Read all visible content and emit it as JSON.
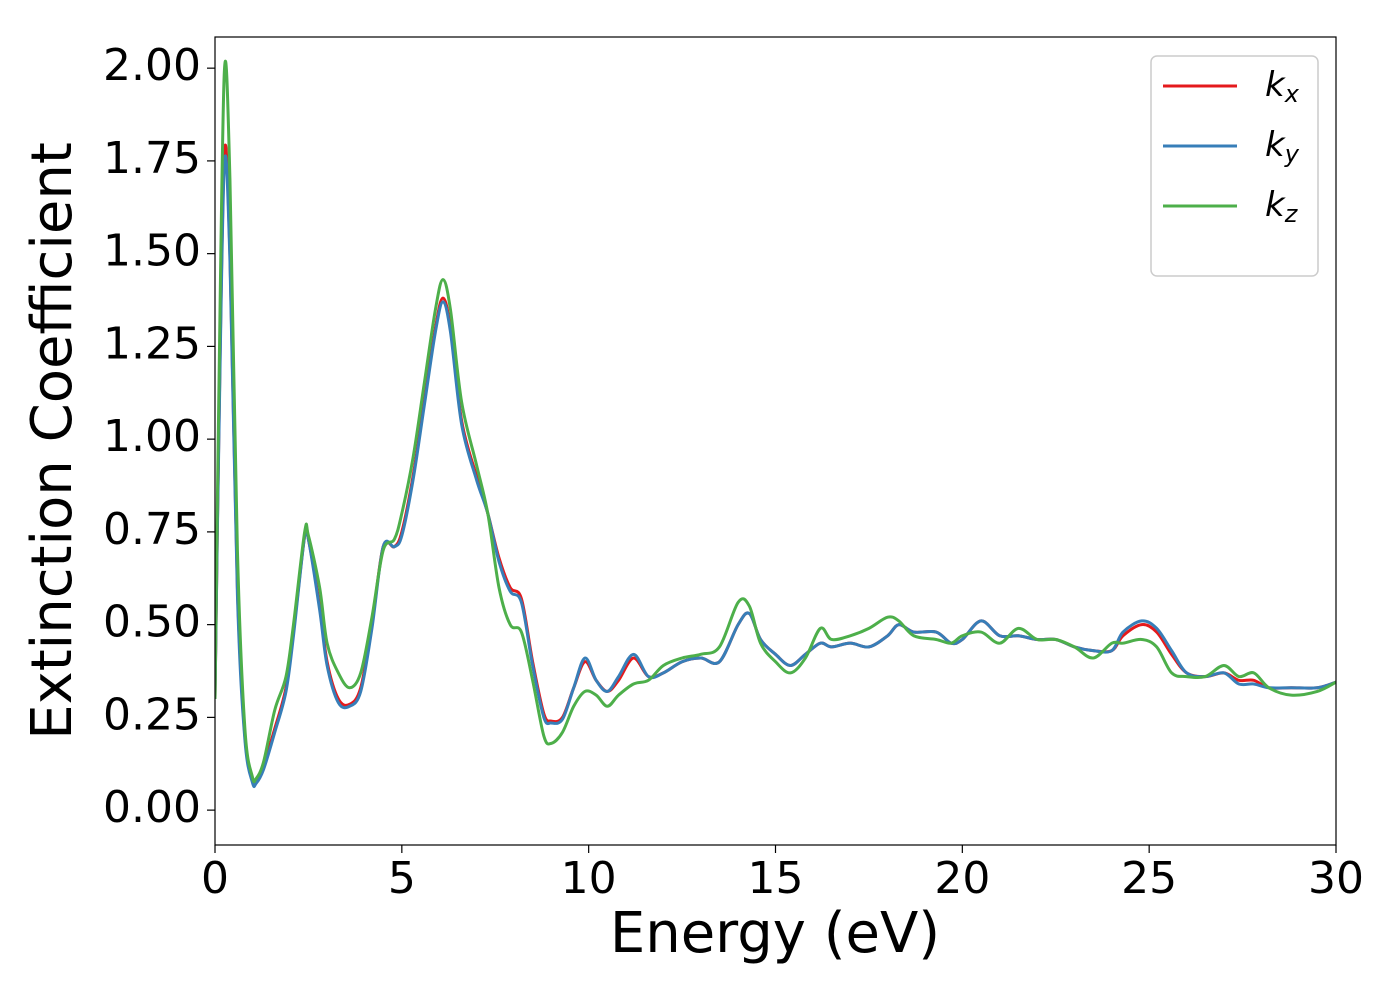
{
  "chart_data": {
    "type": "line",
    "xlabel": "Energy (eV)",
    "ylabel": "Extinction Coefficient",
    "xlim": [
      0,
      30
    ],
    "xticks": [
      0,
      5,
      10,
      15,
      20,
      25,
      30
    ],
    "ylim": [
      -0.094,
      2.084
    ],
    "yticks": [
      {
        "value": 0,
        "label": "0.00"
      },
      {
        "value": 0.25,
        "label": "0.25"
      },
      {
        "value": 0.5,
        "label": "0.50"
      },
      {
        "value": 0.75,
        "label": "0.75"
      },
      {
        "value": 1,
        "label": "1.00"
      },
      {
        "value": 1.25,
        "label": "1.25"
      },
      {
        "value": 1.5,
        "label": "1.50"
      },
      {
        "value": 1.75,
        "label": "1.75"
      },
      {
        "value": 2,
        "label": "2.00"
      }
    ],
    "grid": false,
    "legend_position": "upper-right",
    "x": [
      0,
      0.1,
      0.25,
      0.4,
      0.6,
      0.8,
      1.0,
      1.1,
      1.3,
      1.6,
      1.9,
      2.1,
      2.4,
      2.5,
      2.8,
      3.0,
      3.3,
      3.6,
      3.9,
      4.2,
      4.5,
      4.8,
      5.0,
      5.3,
      5.6,
      5.9,
      6.1,
      6.3,
      6.6,
      7.0,
      7.3,
      7.6,
      7.9,
      8.2,
      8.5,
      8.8,
      9.0,
      9.3,
      9.6,
      9.9,
      10.2,
      10.5,
      10.8,
      11.2,
      11.6,
      12.0,
      12.5,
      13.0,
      13.5,
      14.0,
      14.3,
      14.6,
      15.0,
      15.4,
      15.8,
      16.2,
      16.5,
      17.0,
      17.5,
      18.0,
      18.3,
      18.7,
      19.3,
      19.7,
      20.0,
      20.5,
      21.0,
      21.5,
      22.0,
      22.5,
      23.0,
      23.5,
      24.0,
      24.3,
      24.8,
      25.2,
      25.6,
      26.0,
      26.5,
      27.0,
      27.4,
      27.8,
      28.2,
      28.8,
      29.5,
      30.0
    ],
    "series": [
      {
        "name": "kx",
        "color": "#e41a1c",
        "values": [
          0.3,
          1.0,
          1.77,
          1.5,
          0.6,
          0.2,
          0.08,
          0.075,
          0.12,
          0.22,
          0.33,
          0.48,
          0.74,
          0.73,
          0.55,
          0.4,
          0.3,
          0.285,
          0.33,
          0.5,
          0.71,
          0.71,
          0.75,
          0.9,
          1.1,
          1.3,
          1.38,
          1.3,
          1.05,
          0.9,
          0.8,
          0.68,
          0.6,
          0.57,
          0.4,
          0.26,
          0.24,
          0.25,
          0.33,
          0.4,
          0.35,
          0.32,
          0.35,
          0.41,
          0.36,
          0.37,
          0.4,
          0.41,
          0.4,
          0.5,
          0.53,
          0.46,
          0.42,
          0.39,
          0.42,
          0.45,
          0.44,
          0.45,
          0.44,
          0.47,
          0.5,
          0.48,
          0.48,
          0.45,
          0.46,
          0.51,
          0.47,
          0.47,
          0.46,
          0.46,
          0.44,
          0.43,
          0.43,
          0.47,
          0.5,
          0.48,
          0.42,
          0.37,
          0.36,
          0.37,
          0.35,
          0.35,
          0.33,
          0.33,
          0.33,
          0.345
        ]
      },
      {
        "name": "ky",
        "color": "#377eb8",
        "values": [
          0.3,
          0.98,
          1.74,
          1.48,
          0.58,
          0.19,
          0.075,
          0.072,
          0.11,
          0.21,
          0.32,
          0.47,
          0.74,
          0.73,
          0.54,
          0.39,
          0.29,
          0.28,
          0.32,
          0.49,
          0.71,
          0.71,
          0.74,
          0.89,
          1.09,
          1.29,
          1.37,
          1.29,
          1.04,
          0.89,
          0.8,
          0.67,
          0.59,
          0.56,
          0.39,
          0.25,
          0.235,
          0.245,
          0.33,
          0.41,
          0.35,
          0.32,
          0.36,
          0.42,
          0.36,
          0.37,
          0.4,
          0.41,
          0.4,
          0.5,
          0.53,
          0.46,
          0.42,
          0.39,
          0.42,
          0.45,
          0.44,
          0.45,
          0.44,
          0.47,
          0.5,
          0.48,
          0.48,
          0.45,
          0.46,
          0.51,
          0.47,
          0.47,
          0.46,
          0.46,
          0.44,
          0.43,
          0.43,
          0.48,
          0.51,
          0.49,
          0.43,
          0.37,
          0.36,
          0.37,
          0.34,
          0.34,
          0.33,
          0.33,
          0.33,
          0.345
        ]
      },
      {
        "name": "kz",
        "color": "#4daf4a",
        "values": [
          0.3,
          1.1,
          1.99,
          1.7,
          0.7,
          0.22,
          0.09,
          0.085,
          0.13,
          0.27,
          0.36,
          0.5,
          0.75,
          0.74,
          0.6,
          0.45,
          0.37,
          0.33,
          0.37,
          0.52,
          0.7,
          0.73,
          0.8,
          0.95,
          1.15,
          1.35,
          1.43,
          1.35,
          1.1,
          0.93,
          0.8,
          0.6,
          0.5,
          0.48,
          0.35,
          0.2,
          0.18,
          0.21,
          0.28,
          0.32,
          0.31,
          0.28,
          0.31,
          0.34,
          0.35,
          0.39,
          0.41,
          0.42,
          0.44,
          0.56,
          0.55,
          0.45,
          0.4,
          0.37,
          0.41,
          0.49,
          0.46,
          0.47,
          0.49,
          0.52,
          0.51,
          0.47,
          0.46,
          0.45,
          0.47,
          0.48,
          0.45,
          0.49,
          0.46,
          0.46,
          0.44,
          0.41,
          0.45,
          0.45,
          0.46,
          0.44,
          0.37,
          0.36,
          0.36,
          0.39,
          0.36,
          0.37,
          0.33,
          0.31,
          0.32,
          0.345
        ]
      }
    ]
  }
}
